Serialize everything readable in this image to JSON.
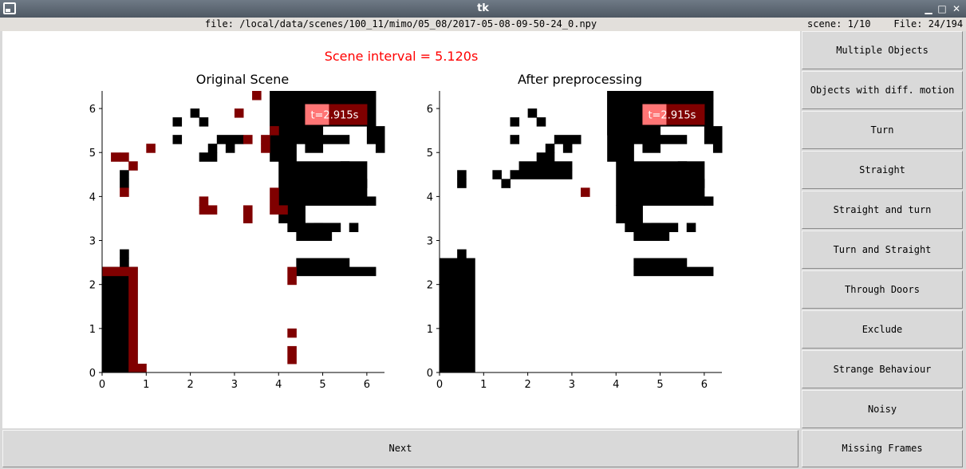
{
  "window": {
    "title": "tk",
    "minimize": "▁",
    "maximize": "□",
    "close": "✕"
  },
  "info": {
    "file": "file: /local/data/scenes/100_11/mimo/05_08/2017-05-08-09-50-24_0.npy",
    "counts": "scene: 1/10    File: 24/194"
  },
  "interval": "Scene interval = 5.120s",
  "buttons": {
    "side": [
      "Multiple Objects",
      "Objects with diff. motion",
      "Turn",
      "Straight",
      "Straight and turn",
      "Turn and Straight",
      "Through Doors",
      "Exclude",
      "Strange Behaviour",
      "Noisy"
    ],
    "next": "Next",
    "missing": "Missing Frames"
  },
  "colors": {
    "occupied": "#000000",
    "highlight": "#800000",
    "badge_bg": "#800000",
    "badge_fill": "#ff7575",
    "interval": "#ff0000"
  },
  "chart_data": [
    {
      "type": "heatmap",
      "title": "Original Scene",
      "annotation": "t=2.915s",
      "xlim": [
        0,
        6.4
      ],
      "ylim": [
        0,
        6.4
      ],
      "xticks": [
        "0",
        "1",
        "2",
        "3",
        "4",
        "5",
        "6"
      ],
      "yticks": [
        "0",
        "1",
        "2",
        "3",
        "4",
        "5",
        "6"
      ],
      "cell_size": 0.2,
      "black_cells": [
        [
          38,
          54,
          5,
          7
        ],
        [
          28,
          46,
          1,
          2
        ],
        [
          27,
          38,
          9,
          4
        ],
        [
          27,
          29,
          1,
          1
        ],
        [
          22,
          29,
          1,
          1
        ],
        [
          19,
          29,
          1,
          1
        ],
        [
          17,
          27,
          2,
          1
        ],
        [
          15,
          27,
          1,
          1
        ],
        [
          14,
          27,
          1,
          1
        ],
        [
          12,
          27,
          1,
          1
        ],
        [
          13,
          28,
          1,
          1
        ],
        [
          11,
          26,
          1,
          1
        ],
        [
          10,
          28,
          1,
          1
        ],
        [
          8,
          27,
          1,
          1
        ],
        [
          7,
          26,
          1,
          1
        ],
        [
          9,
          27,
          1,
          1
        ],
        [
          6,
          28,
          1,
          1
        ],
        [
          5,
          28,
          1,
          1
        ],
        [
          4,
          26,
          1,
          1
        ],
        [
          1,
          22,
          2,
          1
        ],
        [
          1,
          13,
          2,
          1
        ],
        [
          0,
          13,
          3,
          1
        ],
        [
          0,
          12,
          1,
          1
        ],
        [
          0,
          11,
          1,
          1
        ],
        [
          0,
          10,
          1,
          1
        ],
        [
          0,
          9,
          1,
          1
        ],
        [
          0,
          8,
          1,
          1
        ],
        [
          0,
          7,
          1,
          1
        ],
        [
          0,
          6,
          1,
          1
        ],
        [
          0,
          5,
          1,
          1
        ],
        [
          0,
          4,
          1,
          1
        ],
        [
          0,
          3,
          1,
          1
        ],
        [
          0,
          2,
          1,
          1
        ],
        [
          0,
          1,
          1,
          1
        ],
        [
          0,
          0,
          1,
          1
        ],
        [
          0,
          0,
          3,
          12
        ],
        [
          3,
          0,
          1,
          13
        ],
        [
          2,
          13,
          1,
          1
        ],
        [
          4,
          0,
          1,
          1
        ],
        [
          22,
          0,
          1,
          3
        ],
        [
          23,
          2,
          1,
          1
        ],
        [
          21,
          10,
          5,
          1
        ],
        [
          21,
          11,
          3,
          1
        ],
        [
          21,
          12,
          3,
          1
        ],
        [
          21,
          13,
          4,
          1
        ],
        [
          21,
          14,
          4,
          2
        ],
        [
          21,
          16,
          5,
          1
        ],
        [
          21,
          17,
          3,
          3
        ],
        [
          21,
          20,
          4,
          2
        ],
        [
          21,
          22,
          3,
          1
        ],
        [
          23,
          23,
          2,
          1
        ],
        [
          24,
          24,
          1,
          1
        ],
        [
          26,
          14,
          1,
          2
        ],
        [
          25,
          15,
          1,
          1
        ],
        [
          26,
          16,
          1,
          1
        ],
        [
          27,
          17,
          1,
          1
        ],
        [
          30,
          16,
          1,
          1
        ],
        [
          31,
          13,
          1,
          1
        ],
        [
          33,
          12,
          1,
          1
        ],
        [
          34,
          8,
          1,
          1
        ],
        [
          32,
          6,
          1,
          1
        ],
        [
          30,
          6,
          1,
          1
        ],
        [
          29,
          10,
          1,
          1
        ],
        [
          27,
          11,
          1,
          1
        ],
        [
          27,
          7,
          1,
          1
        ],
        [
          25,
          7,
          1,
          1
        ],
        [
          26,
          4,
          1,
          1
        ],
        [
          27,
          3,
          1,
          1
        ],
        [
          28,
          2,
          2,
          1
        ],
        [
          28,
          1,
          3,
          1
        ],
        [
          29,
          0,
          3,
          1
        ],
        [
          30,
          22,
          1,
          1
        ],
        [
          31,
          20,
          1,
          1
        ],
        [
          32,
          21,
          1,
          1
        ],
        [
          34,
          3,
          1,
          1
        ],
        [
          35,
          2,
          1,
          1
        ],
        [
          36,
          0,
          1,
          3
        ],
        [
          38,
          2,
          1,
          1
        ],
        [
          39,
          1,
          1,
          1
        ],
        [
          41,
          3,
          1,
          1
        ],
        [
          40,
          1,
          2,
          1
        ],
        [
          2,
          4,
          3,
          1
        ],
        [
          2,
          5,
          3,
          1
        ],
        [
          1,
          6,
          4,
          1
        ],
        [
          1,
          7,
          4,
          1
        ],
        [
          1,
          8,
          4,
          1
        ],
        [
          1,
          9,
          4,
          1
        ],
        [
          1,
          10,
          4,
          1
        ],
        [
          1,
          11,
          4,
          1
        ],
        [
          1,
          12,
          4,
          1
        ]
      ],
      "red_cells": [
        [
          3,
          18,
          1,
          1
        ],
        [
          3,
          19,
          1,
          1
        ],
        [
          1,
          21,
          1,
          2
        ],
        [
          0,
          20,
          1,
          1
        ],
        [
          2,
          23,
          1,
          1
        ],
        [
          3,
          15,
          1,
          1
        ],
        [
          6,
          19,
          1,
          1
        ],
        [
          4,
          17,
          1,
          1
        ],
        [
          10,
          30,
          1,
          1
        ],
        [
          11,
          17,
          1,
          1
        ],
        [
          9,
          18,
          1,
          1
        ],
        [
          10,
          16,
          1,
          1
        ],
        [
          11,
          24,
          1,
          1
        ],
        [
          12,
          23,
          1,
          1
        ],
        [
          12,
          21,
          1,
          1
        ],
        [
          15,
          24,
          1,
          1
        ],
        [
          16,
          23,
          1,
          1
        ],
        [
          17,
          23,
          1,
          1
        ],
        [
          16,
          20,
          1,
          1
        ],
        [
          15,
          20,
          1,
          1
        ],
        [
          18,
          21,
          1,
          1
        ],
        [
          19,
          21,
          1,
          1
        ],
        [
          13,
          25,
          1,
          1
        ],
        [
          0,
          2,
          1,
          1
        ]
      ]
    },
    {
      "type": "heatmap",
      "title": "After preprocessing",
      "annotation": "t=2.915s",
      "xlim": [
        0,
        6.4
      ],
      "ylim": [
        0,
        6.4
      ],
      "xticks": [
        "0",
        "1",
        "2",
        "3",
        "4",
        "5",
        "6"
      ],
      "yticks": [
        "0",
        "1",
        "2",
        "3",
        "4",
        "5",
        "6"
      ],
      "cell_size": 0.2
    }
  ]
}
